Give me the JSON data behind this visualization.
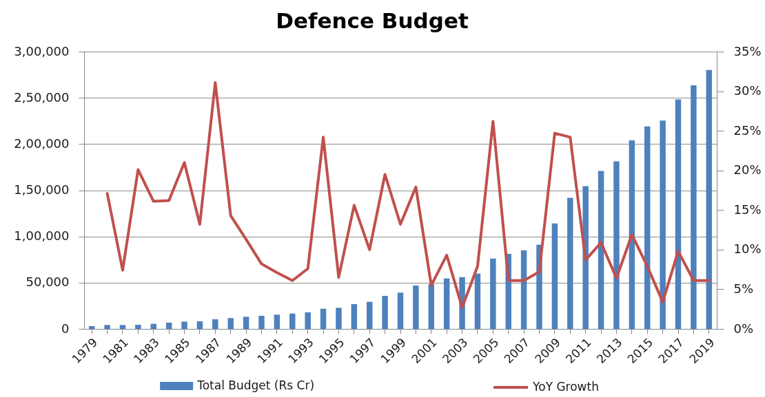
{
  "chart_data": {
    "type": "bar",
    "title": "Defence Budget",
    "categories": [
      "1979",
      null,
      "1981",
      null,
      "1983",
      null,
      "1985",
      null,
      "1987",
      null,
      "1989",
      null,
      "1991",
      null,
      "1993",
      null,
      "1995",
      null,
      "1997",
      null,
      "1999",
      null,
      "2001",
      null,
      "2003",
      null,
      "2005",
      null,
      "2007",
      null,
      "2009",
      null,
      "2011",
      null,
      "2013",
      null,
      "2015",
      null,
      "2017",
      null,
      "2019"
    ],
    "series": [
      {
        "name": "Total Budget (Rs Cr)",
        "color": "#4f81bd",
        "values": [
          3000,
          4200,
          4200,
          4400,
          5500,
          6700,
          7900,
          8200,
          10400,
          11700,
          13100,
          14100,
          15400,
          16600,
          17900,
          21800,
          22800,
          26800,
          29300,
          35700,
          39200,
          46900,
          48400,
          54600,
          56000,
          59800,
          76100,
          81100,
          85100,
          91000,
          114100,
          141900,
          154500,
          170900,
          181300,
          203900,
          219000,
          225400,
          248300,
          263600,
          280000
        ]
      },
      {
        "name": "YoY Growth",
        "type": "line",
        "axis": "y2",
        "color": "#c0504d",
        "values": [
          null,
          17.1,
          7.4,
          20.1,
          16.1,
          16.2,
          21.0,
          13.2,
          31.1,
          14.3,
          11.3,
          8.2,
          7.1,
          6.1,
          7.6,
          24.2,
          6.5,
          15.6,
          10.0,
          19.5,
          13.2,
          17.9,
          5.5,
          9.3,
          2.7,
          7.9,
          26.2,
          6.1,
          6.1,
          7.2,
          24.7,
          24.2,
          8.7,
          10.9,
          6.4,
          11.9,
          7.9,
          3.4,
          9.8,
          6.1,
          6.1
        ]
      }
    ],
    "ylim": [
      0,
      300000
    ],
    "yticks": [
      0,
      {
        "value": 50000,
        "label": "50,000"
      },
      {
        "value": 100000,
        "label": "1,00,000"
      },
      {
        "value": 150000,
        "label": "1,50,000"
      },
      {
        "value": 200000,
        "label": "2,00,000"
      },
      {
        "value": 250000,
        "label": "2,50,000"
      },
      {
        "value": 300000,
        "label": "3,00,000"
      }
    ],
    "y2lim": [
      0,
      35
    ],
    "y2ticks": [
      {
        "value": 0,
        "label": "0%"
      },
      {
        "value": 5,
        "label": "5%"
      },
      {
        "value": 10,
        "label": "10%"
      },
      {
        "value": 15,
        "label": "15%"
      },
      {
        "value": 20,
        "label": "20%"
      },
      {
        "value": 25,
        "label": "25%"
      },
      {
        "value": 30,
        "label": "30%"
      },
      {
        "value": 35,
        "label": "35%"
      }
    ],
    "grid": "y",
    "legend": "bottom",
    "line_style": "solid"
  }
}
